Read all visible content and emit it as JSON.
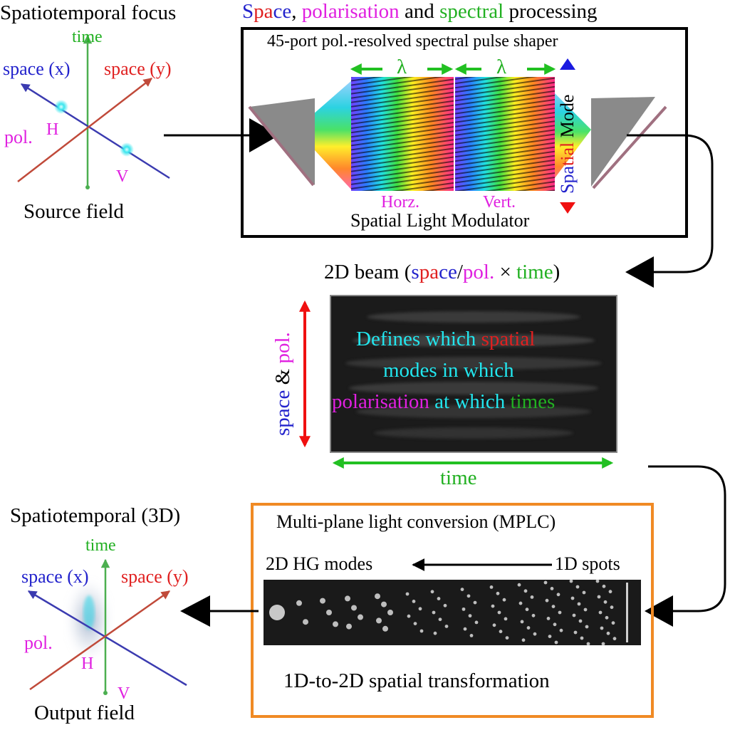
{
  "source": {
    "title": "Spatiotemporal focus",
    "axis_time": "time",
    "axis_x": "space (x)",
    "axis_y": "space (y)",
    "axis_pol": "pol.",
    "label_h": "H",
    "label_v": "V",
    "caption": "Source field"
  },
  "shaper": {
    "heading_part1": "S",
    "heading_part2": "pa",
    "heading_part3": "ce",
    "heading_sep": ", ",
    "heading_pol": "polarisation",
    "heading_and": " and ",
    "heading_spectral": "spectral",
    "heading_end": " processing",
    "box_title": "45-port pol.-resolved spectral pulse shaper",
    "lambda_left": "λ",
    "lambda_right": "λ",
    "horz": "Horz.",
    "vert": "Vert.",
    "slm": "Spatial Light Modulator",
    "mode_spatial_1": "Spa",
    "mode_spatial_2": "tial",
    "mode_mode": " Mode"
  },
  "beam": {
    "t_pre": "2D beam (",
    "t_s": "s",
    "t_pa": "pa",
    "t_ce": "ce",
    "t_slash": "/",
    "t_pol": "pol.",
    "t_x": " × ",
    "t_time": "time",
    "t_close": ")",
    "side_space": "space",
    "side_amp": " & ",
    "side_pol": "pol.",
    "line1_a": "Defines which",
    "line1_b": "spatial",
    "line2": "modes in which",
    "line3_a": "polarisation",
    "line3_b": "at which",
    "line3_c": "times",
    "bottom_time": "time"
  },
  "mplc": {
    "title": "Multi-plane light conversion (MPLC)",
    "left_label": "2D HG modes",
    "right_label": "1D spots",
    "caption": "1D-to-2D spatial transformation"
  },
  "output": {
    "title": "Spatiotemporal (3D)",
    "axis_time": "time",
    "axis_x": "space (x)",
    "axis_y": "space (y)",
    "axis_pol": "pol.",
    "label_h": "H",
    "label_v": "V",
    "caption": "Output field"
  },
  "colors": {
    "blue": "#2222cc",
    "red": "#e02020",
    "magenta": "#e020e0",
    "green": "#22b022",
    "cyan": "#22e6ee",
    "orange": "#f08a24"
  }
}
